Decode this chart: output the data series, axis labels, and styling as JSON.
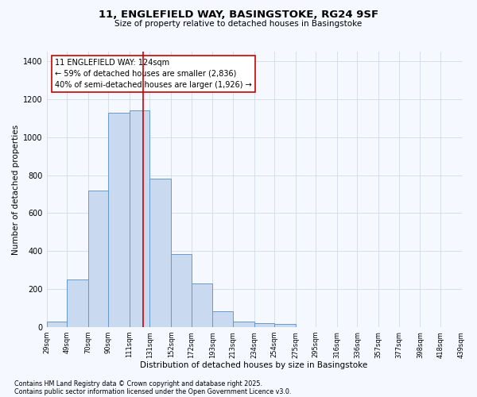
{
  "title1": "11, ENGLEFIELD WAY, BASINGSTOKE, RG24 9SF",
  "title2": "Size of property relative to detached houses in Basingstoke",
  "xlabel": "Distribution of detached houses by size in Basingstoke",
  "ylabel": "Number of detached properties",
  "bin_edges": [
    29,
    49,
    70,
    90,
    111,
    131,
    152,
    172,
    193,
    213,
    234,
    254,
    275,
    295,
    316,
    336,
    357,
    377,
    398,
    418,
    439
  ],
  "bar_heights": [
    30,
    250,
    720,
    1130,
    1140,
    780,
    385,
    230,
    85,
    30,
    20,
    15,
    0,
    0,
    0,
    0,
    0,
    0,
    0,
    0
  ],
  "bar_color": "#c8d9f0",
  "bar_edge_color": "#6699cc",
  "grid_color": "#d0d8e8",
  "bg_color": "#f5f8ff",
  "property_line_x": 124,
  "property_line_color": "#cc0000",
  "annotation_title": "11 ENGLEFIELD WAY: 124sqm",
  "annotation_line1": "← 59% of detached houses are smaller (2,836)",
  "annotation_line2": "40% of semi-detached houses are larger (1,926) →",
  "annotation_box_color": "#ffffff",
  "annotation_box_edge": "#cc0000",
  "ylim": [
    0,
    1450
  ],
  "yticks": [
    0,
    200,
    400,
    600,
    800,
    1000,
    1200,
    1400
  ],
  "footnote1": "Contains HM Land Registry data © Crown copyright and database right 2025.",
  "footnote2": "Contains public sector information licensed under the Open Government Licence v3.0.",
  "tick_labels": [
    "29sqm",
    "49sqm",
    "70sqm",
    "90sqm",
    "111sqm",
    "131sqm",
    "152sqm",
    "172sqm",
    "193sqm",
    "213sqm",
    "234sqm",
    "254sqm",
    "275sqm",
    "295sqm",
    "316sqm",
    "336sqm",
    "357sqm",
    "377sqm",
    "398sqm",
    "418sqm",
    "439sqm"
  ],
  "title1_fontsize": 9.5,
  "title2_fontsize": 7.5,
  "xlabel_fontsize": 7.5,
  "ylabel_fontsize": 7.5,
  "xtick_fontsize": 6.0,
  "ytick_fontsize": 7.0,
  "annotation_fontsize": 7.0,
  "footnote_fontsize": 5.8
}
